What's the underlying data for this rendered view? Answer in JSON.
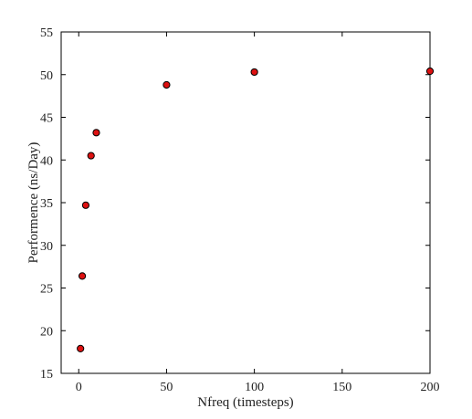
{
  "chart_data": {
    "type": "scatter",
    "title": "",
    "xlabel": "Nfreq (timesteps)",
    "ylabel": "Performence (ns/Day)",
    "xlim": [
      -10,
      200
    ],
    "ylim": [
      15,
      55
    ],
    "xticks": [
      0,
      50,
      100,
      150,
      200
    ],
    "yticks": [
      15,
      20,
      25,
      30,
      35,
      40,
      45,
      50,
      55
    ],
    "grid": false,
    "legend": "none",
    "series": [
      {
        "marker_color": "#dd1111",
        "marker_edge": "#000000",
        "x": [
          1,
          2,
          4,
          7,
          10,
          50,
          100,
          200
        ],
        "y": [
          17.9,
          26.4,
          34.7,
          40.5,
          43.2,
          48.8,
          50.3,
          50.4
        ]
      }
    ]
  }
}
